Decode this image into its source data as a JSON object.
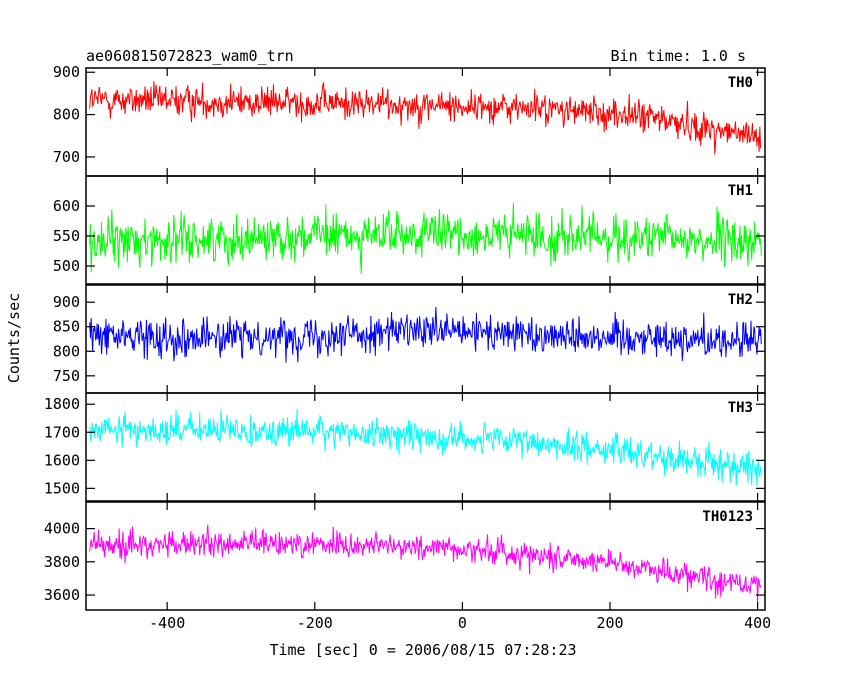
{
  "chart_data": [
    {
      "type": "line",
      "panel_label": "TH0",
      "color": "#ff0000",
      "ylim": [
        655,
        910
      ],
      "yticks": [
        700,
        800,
        900
      ],
      "trend": [
        [
          -510,
          835
        ],
        [
          -300,
          830
        ],
        [
          -100,
          825
        ],
        [
          100,
          815
        ],
        [
          250,
          795
        ],
        [
          400,
          745
        ]
      ],
      "noise": 38
    },
    {
      "type": "line",
      "panel_label": "TH1",
      "color": "#00ff00",
      "ylim": [
        470,
        650
      ],
      "yticks": [
        500,
        550,
        600
      ],
      "trend": [
        [
          -510,
          540
        ],
        [
          -200,
          550
        ],
        [
          0,
          552
        ],
        [
          200,
          548
        ],
        [
          400,
          540
        ]
      ],
      "noise": 38
    },
    {
      "type": "line",
      "panel_label": "TH2",
      "color": "#0000ff",
      "ylim": [
        715,
        935
      ],
      "yticks": [
        750,
        800,
        850,
        900
      ],
      "trend": [
        [
          -510,
          832
        ],
        [
          -300,
          828
        ],
        [
          -100,
          840
        ],
        [
          100,
          835
        ],
        [
          300,
          826
        ],
        [
          400,
          820
        ]
      ],
      "noise": 38
    },
    {
      "type": "line",
      "panel_label": "TH3",
      "color": "#00ffff",
      "ylim": [
        1455,
        1840
      ],
      "yticks": [
        1500,
        1600,
        1700,
        1800
      ],
      "trend": [
        [
          -510,
          1710
        ],
        [
          -200,
          1705
        ],
        [
          0,
          1680
        ],
        [
          200,
          1640
        ],
        [
          400,
          1570
        ]
      ],
      "noise": 55
    },
    {
      "type": "line",
      "panel_label": "TH0123",
      "color": "#ff00ff",
      "ylim": [
        3510,
        4160
      ],
      "yticks": [
        3600,
        3800,
        4000
      ],
      "trend": [
        [
          -510,
          3900
        ],
        [
          -200,
          3910
        ],
        [
          0,
          3880
        ],
        [
          200,
          3800
        ],
        [
          400,
          3650
        ]
      ],
      "noise": 80
    }
  ],
  "header": {
    "title": "ae060815072823_wam0_trn",
    "bin_time": "Bin time: 1.0 s"
  },
  "axes": {
    "xlabel": "Time [sec] 0 = 2006/08/15 07:28:23",
    "ylabel": "Counts/sec",
    "xlim": [
      -510,
      410
    ],
    "data_xrange": [
      -505,
      405
    ],
    "xticks": [
      -400,
      -200,
      0,
      200,
      400
    ]
  }
}
